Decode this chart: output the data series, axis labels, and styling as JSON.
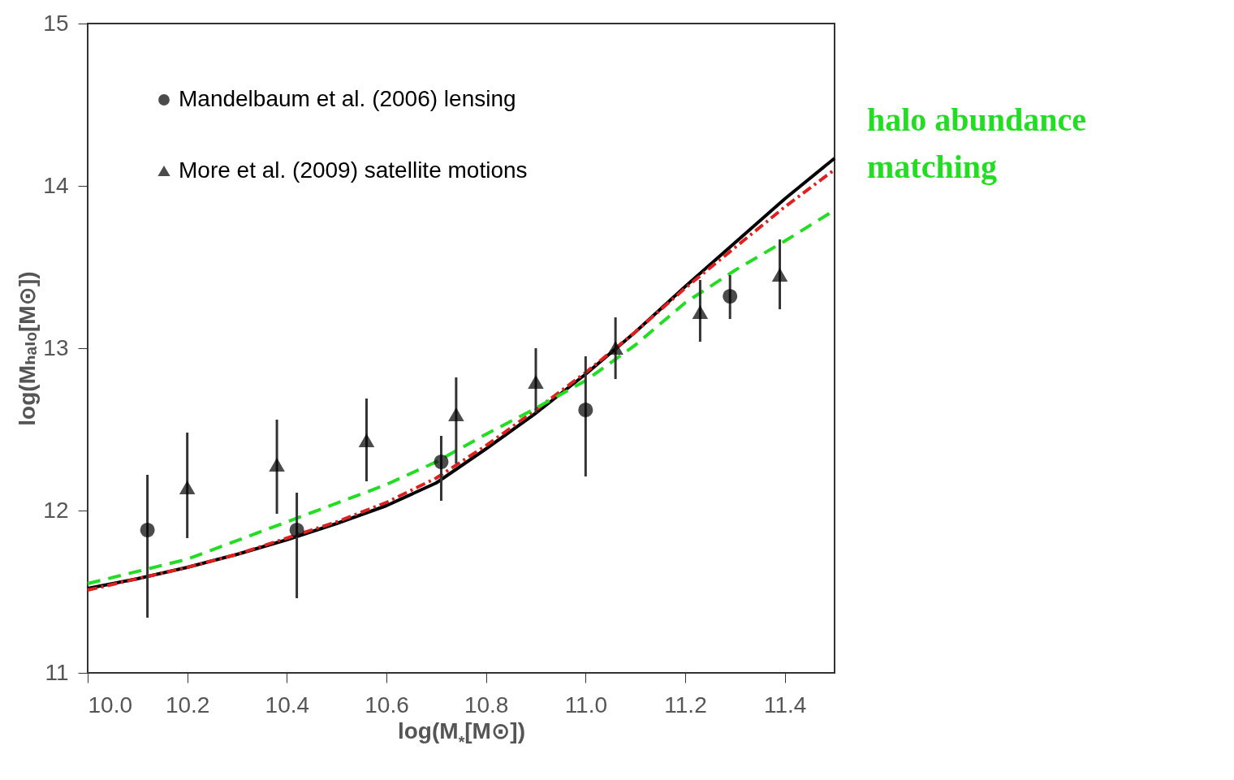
{
  "chart_data": {
    "type": "scatter",
    "xlabel": "log(M$_{*}$[M⊙])",
    "ylabel": "log(Mₕₐₗₒ[M⊙])",
    "xlim": [
      10.0,
      11.5
    ],
    "ylim": [
      11,
      15
    ],
    "xticks": [
      {
        "value": 10,
        "label": "10.0"
      },
      {
        "value": 10.2,
        "label": "10.2"
      },
      {
        "value": 10.4,
        "label": "10.4"
      },
      {
        "value": 10.6,
        "label": "10.6"
      },
      {
        "value": 10.8,
        "label": "10.8"
      },
      {
        "value": 11,
        "label": "11.0"
      },
      {
        "value": 11.2,
        "label": "11.2"
      },
      {
        "value": 11.4,
        "label": "11.4"
      }
    ],
    "yticks": [
      11,
      12,
      13,
      14,
      15
    ],
    "grid": false,
    "legend": "top left",
    "series": [
      {
        "name": "Mandelbaum et al. (2006)   lensing",
        "type": "scatter",
        "marker": "circle",
        "color": "#000000",
        "x": [
          10.12,
          10.42,
          10.71,
          11.0,
          11.29
        ],
        "values": [
          11.88,
          11.88,
          12.3,
          12.62,
          13.32
        ],
        "errors": [
          [
            11.34,
            12.22
          ],
          [
            11.46,
            12.11
          ],
          [
            12.06,
            12.46
          ],
          [
            12.21,
            12.95
          ],
          [
            13.18,
            13.45
          ]
        ]
      },
      {
        "name": "More et al. (2009)   satellite motions",
        "type": "scatter",
        "marker": "triangle",
        "color": "#000000",
        "x": [
          10.2,
          10.38,
          10.56,
          10.74,
          10.9,
          11.06,
          11.23,
          11.39
        ],
        "values": [
          12.14,
          12.28,
          12.43,
          12.59,
          12.79,
          13.0,
          13.22,
          13.45
        ],
        "errors": [
          [
            11.83,
            12.48
          ],
          [
            11.98,
            12.56
          ],
          [
            12.18,
            12.69
          ],
          [
            12.29,
            12.82
          ],
          [
            12.6,
            13.0
          ],
          [
            12.81,
            13.19
          ],
          [
            13.04,
            13.42
          ],
          [
            13.24,
            13.67
          ]
        ]
      },
      {
        "type": "line",
        "line_style": "solid",
        "color": "#000000",
        "x": [
          10.0,
          10.1,
          10.2,
          10.3,
          10.4,
          10.5,
          10.6,
          10.7,
          10.8,
          10.9,
          11.0,
          11.1,
          11.2,
          11.3,
          11.4,
          11.5
        ],
        "values": [
          11.52,
          11.58,
          11.65,
          11.73,
          11.82,
          11.92,
          12.03,
          12.17,
          12.38,
          12.6,
          12.84,
          13.1,
          13.38,
          13.65,
          13.92,
          14.17
        ]
      },
      {
        "type": "line",
        "line_style": "dashdot",
        "color": "#e0201e",
        "x": [
          10.0,
          10.1,
          10.2,
          10.3,
          10.4,
          10.5,
          10.6,
          10.7,
          10.8,
          10.9,
          11.0,
          11.1,
          11.2,
          11.3,
          11.4,
          11.5
        ],
        "values": [
          11.51,
          11.58,
          11.65,
          11.73,
          11.83,
          11.93,
          12.05,
          12.2,
          12.4,
          12.62,
          12.85,
          13.1,
          13.37,
          13.62,
          13.87,
          14.1
        ]
      },
      {
        "name": "halo abundance matching",
        "type": "line",
        "line_style": "dashed",
        "color": "#22dd22",
        "x": [
          10.0,
          10.2,
          10.4,
          10.6,
          10.7,
          10.8,
          10.9,
          11.0,
          11.1,
          11.2,
          11.3,
          11.4,
          11.5
        ],
        "values": [
          11.55,
          11.7,
          11.93,
          12.16,
          12.3,
          12.47,
          12.63,
          12.8,
          13.02,
          13.28,
          13.48,
          13.66,
          13.85
        ]
      }
    ]
  }
}
